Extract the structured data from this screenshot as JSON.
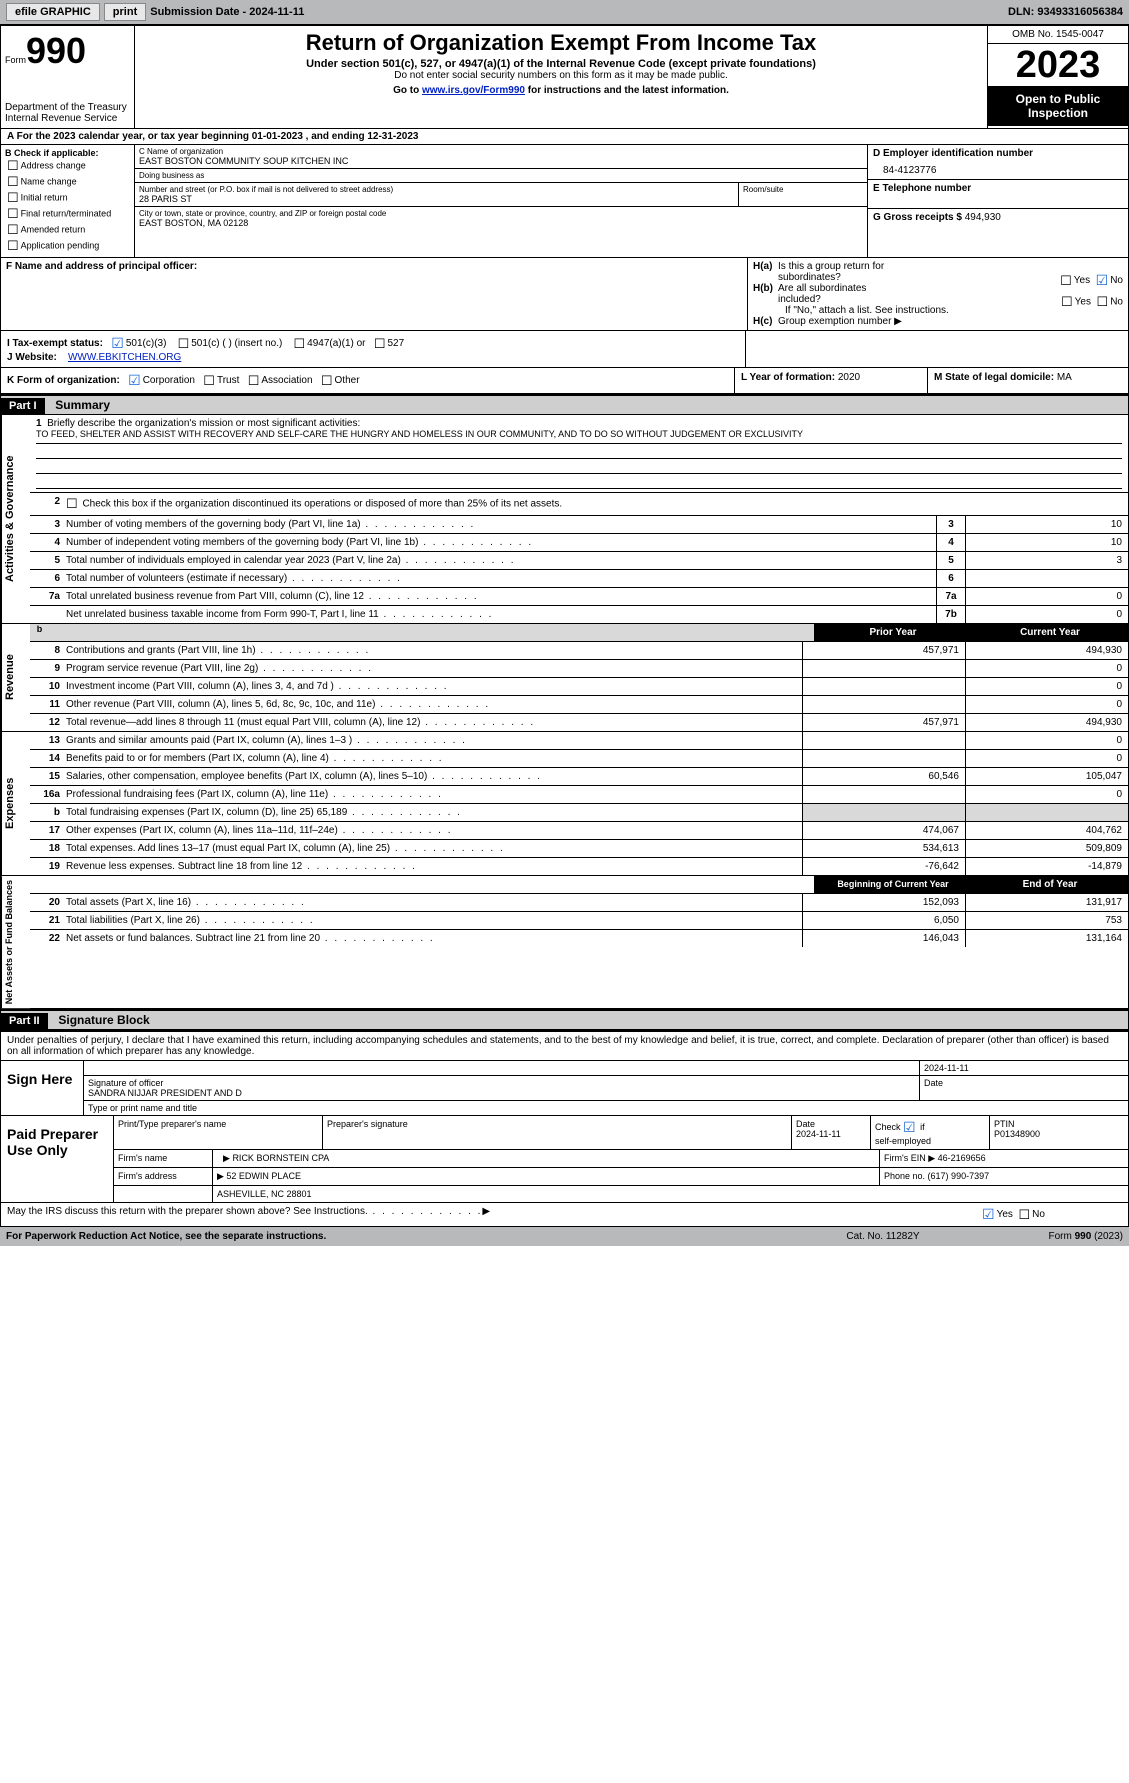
{
  "topbar": {
    "efile": "efile GRAPHIC",
    "print": "print",
    "subdate_label": "Submission Date - ",
    "subdate": "2024-11-11",
    "dln_label": "DLN: ",
    "dln": "93493316056384"
  },
  "header": {
    "form_word": "Form",
    "form_no": "990",
    "dept": "Department of the Treasury\nInternal Revenue Service",
    "title": "Return of Organization Exempt From Income Tax",
    "sub1": "Under section 501(c), 527, or 4947(a)(1) of the Internal Revenue Code (except private foundations)",
    "sub2": "Do not enter social security numbers on this form as it may be made public.",
    "sub3_pre": "Go to ",
    "sub3_link": "www.irs.gov/Form990",
    "sub3_post": " for instructions and the latest information.",
    "omb": "OMB No. 1545-0047",
    "year": "2023",
    "otp": "Open to Public Inspection"
  },
  "period": {
    "text_a": "A For the 2023 calendar year, or tax year beginning ",
    "begin": "01-01-2023",
    "text_b": " , and ending ",
    "end": "12-31-2023"
  },
  "boxB": {
    "hdr": "B Check if applicable:",
    "items": [
      "Address change",
      "Name change",
      "Initial return",
      "Final return/terminated",
      "Amended return",
      "Application pending"
    ]
  },
  "boxC": {
    "name_lbl": "C Name of organization",
    "name": "EAST BOSTON COMMUNITY SOUP KITCHEN INC",
    "dba_lbl": "Doing business as",
    "dba": "",
    "addr_lbl": "Number and street (or P.O. box if mail is not delivered to street address)",
    "addr": "28 PARIS ST",
    "room_lbl": "Room/suite",
    "city_lbl": "City or town, state or province, country, and ZIP or foreign postal code",
    "city": "EAST BOSTON, MA  02128"
  },
  "boxD": {
    "ein_lbl": "D Employer identification number",
    "ein": "84-4123776",
    "phone_lbl": "E Telephone number",
    "phone": "",
    "gross_lbl": "G Gross receipts $ ",
    "gross": "494,930"
  },
  "boxF": {
    "lbl": "F  Name and address of principal officer:",
    "val": ""
  },
  "boxH": {
    "a_lbl": "H(a)  Is this a group return for subordinates?",
    "b_lbl": "H(b)  Are all subordinates included?",
    "b_note": "If \"No,\" attach a list. See instructions.",
    "c_lbl": "H(c)  Group exemption number ",
    "yes": "Yes",
    "no": "No"
  },
  "boxI": {
    "lbl": "I    Tax-exempt status:",
    "o1": "501(c)(3)",
    "o2": "501(c) (  ) (insert no.)",
    "o3": "4947(a)(1) or",
    "o4": "527"
  },
  "boxJ": {
    "lbl": "J   Website: ",
    "val": "WWW.EBKITCHEN.ORG"
  },
  "boxK": {
    "lbl": "K Form of organization:",
    "o1": "Corporation",
    "o2": "Trust",
    "o3": "Association",
    "o4": "Other"
  },
  "boxL": {
    "lbl": "L Year of formation: ",
    "val": "2020"
  },
  "boxM": {
    "lbl": "M State of legal domicile: ",
    "val": "MA"
  },
  "part1": {
    "hdr": "Part I",
    "lbl": "Summary"
  },
  "summary": {
    "s1": {
      "side": "Activities & Governance",
      "l1": "Briefly describe the organization's mission or most significant activities:",
      "mission": "TO FEED, SHELTER AND ASSIST WITH RECOVERY AND SELF-CARE THE HUNGRY AND HOMELESS IN OUR COMMUNITY, AND TO DO SO WITHOUT JUDGEMENT OR EXCLUSIVITY",
      "l2": "Check this box      if the organization discontinued its operations or disposed of more than 25% of its net assets.",
      "rows": [
        {
          "n": "3",
          "d": "Number of voting members of the governing body (Part VI, line 1a)",
          "b": "3",
          "v": "10"
        },
        {
          "n": "4",
          "d": "Number of independent voting members of the governing body (Part VI, line 1b)",
          "b": "4",
          "v": "10"
        },
        {
          "n": "5",
          "d": "Total number of individuals employed in calendar year 2023 (Part V, line 2a)",
          "b": "5",
          "v": "3"
        },
        {
          "n": "6",
          "d": "Total number of volunteers (estimate if necessary)",
          "b": "6",
          "v": ""
        },
        {
          "n": "7a",
          "d": "Total unrelated business revenue from Part VIII, column (C), line 12",
          "b": "7a",
          "v": "0"
        },
        {
          "n": "",
          "d": "Net unrelated business taxable income from Form 990-T, Part I, line 11",
          "b": "7b",
          "v": "0"
        }
      ]
    },
    "s2": {
      "side": "Revenue",
      "hdr_prior": "Prior Year",
      "hdr_curr": "Current Year",
      "rows": [
        {
          "n": "8",
          "d": "Contributions and grants (Part VIII, line 1h)",
          "p": "457,971",
          "c": "494,930"
        },
        {
          "n": "9",
          "d": "Program service revenue (Part VIII, line 2g)",
          "p": "",
          "c": "0"
        },
        {
          "n": "10",
          "d": "Investment income (Part VIII, column (A), lines 3, 4, and 7d )",
          "p": "",
          "c": "0"
        },
        {
          "n": "11",
          "d": "Other revenue (Part VIII, column (A), lines 5, 6d, 8c, 9c, 10c, and 11e)",
          "p": "",
          "c": "0"
        },
        {
          "n": "12",
          "d": "Total revenue—add lines 8 through 11 (must equal Part VIII, column (A), line 12)",
          "p": "457,971",
          "c": "494,930"
        }
      ]
    },
    "s3": {
      "side": "Expenses",
      "rows": [
        {
          "n": "13",
          "d": "Grants and similar amounts paid (Part IX, column (A), lines 1–3 )",
          "p": "",
          "c": "0"
        },
        {
          "n": "14",
          "d": "Benefits paid to or for members (Part IX, column (A), line 4)",
          "p": "",
          "c": "0"
        },
        {
          "n": "15",
          "d": "Salaries, other compensation, employee benefits (Part IX, column (A), lines 5–10)",
          "p": "60,546",
          "c": "105,047"
        },
        {
          "n": "16a",
          "d": "Professional fundraising fees (Part IX, column (A), line 11e)",
          "p": "",
          "c": "0"
        },
        {
          "n": "b",
          "d": "Total fundraising expenses (Part IX, column (D), line 25) 65,189",
          "p": "g",
          "c": "g"
        },
        {
          "n": "17",
          "d": "Other expenses (Part IX, column (A), lines 11a–11d, 11f–24e)",
          "p": "474,067",
          "c": "404,762"
        },
        {
          "n": "18",
          "d": "Total expenses. Add lines 13–17 (must equal Part IX, column (A), line 25)",
          "p": "534,613",
          "c": "509,809"
        },
        {
          "n": "19",
          "d": "Revenue less expenses. Subtract line 18 from line 12",
          "p": "-76,642",
          "c": "-14,879"
        }
      ]
    },
    "s4": {
      "side": "Net Assets or Fund Balances",
      "hdr_beg": "Beginning of Current Year",
      "hdr_end": "End of Year",
      "rows": [
        {
          "n": "20",
          "d": "Total assets (Part X, line 16)",
          "p": "152,093",
          "c": "131,917"
        },
        {
          "n": "21",
          "d": "Total liabilities (Part X, line 26)",
          "p": "6,050",
          "c": "753"
        },
        {
          "n": "22",
          "d": "Net assets or fund balances. Subtract line 21 from line 20",
          "p": "146,043",
          "c": "131,164"
        }
      ]
    }
  },
  "part2": {
    "hdr": "Part II",
    "lbl": "Signature Block",
    "decl": "Under penalties of perjury, I declare that I have examined this return, including accompanying schedules and statements, and to the best of my knowledge and belief, it is true, correct, and complete. Declaration of preparer (other than officer) is based on all information of which preparer has any knowledge."
  },
  "sign": {
    "here": "Sign Here",
    "sig_lbl": "Signature of officer",
    "name": "SANDRA NIJJAR  PRESIDENT AND D",
    "type_lbl": "Type or print name and title",
    "date_lbl": "Date",
    "date": "2024-11-11"
  },
  "prep": {
    "lbl": "Paid Preparer Use Only",
    "r1": {
      "a": "Print/Type preparer's name",
      "b": "Preparer's signature",
      "c": "Date",
      "cv": "2024-11-11",
      "d": "Check        if self-employed",
      "e": "PTIN",
      "ev": "P01348900"
    },
    "r2": {
      "a": "Firm's name",
      "av": "RICK BORNSTEIN CPA",
      "b": "Firm's EIN ",
      "bv": "46-2169656"
    },
    "r3": {
      "a": "Firm's address",
      "av": "52 EDWIN PLACE",
      "b": "Phone no. ",
      "bv": "(617) 990-7397"
    },
    "r3b": "ASHEVILLE, NC  28801",
    "discuss": "May the IRS discuss this return with the preparer shown above? See Instructions."
  },
  "footer": {
    "l": "For Paperwork Reduction Act Notice, see the separate instructions.",
    "m": "Cat. No. 11282Y",
    "r": "Form 990 (2023)"
  }
}
